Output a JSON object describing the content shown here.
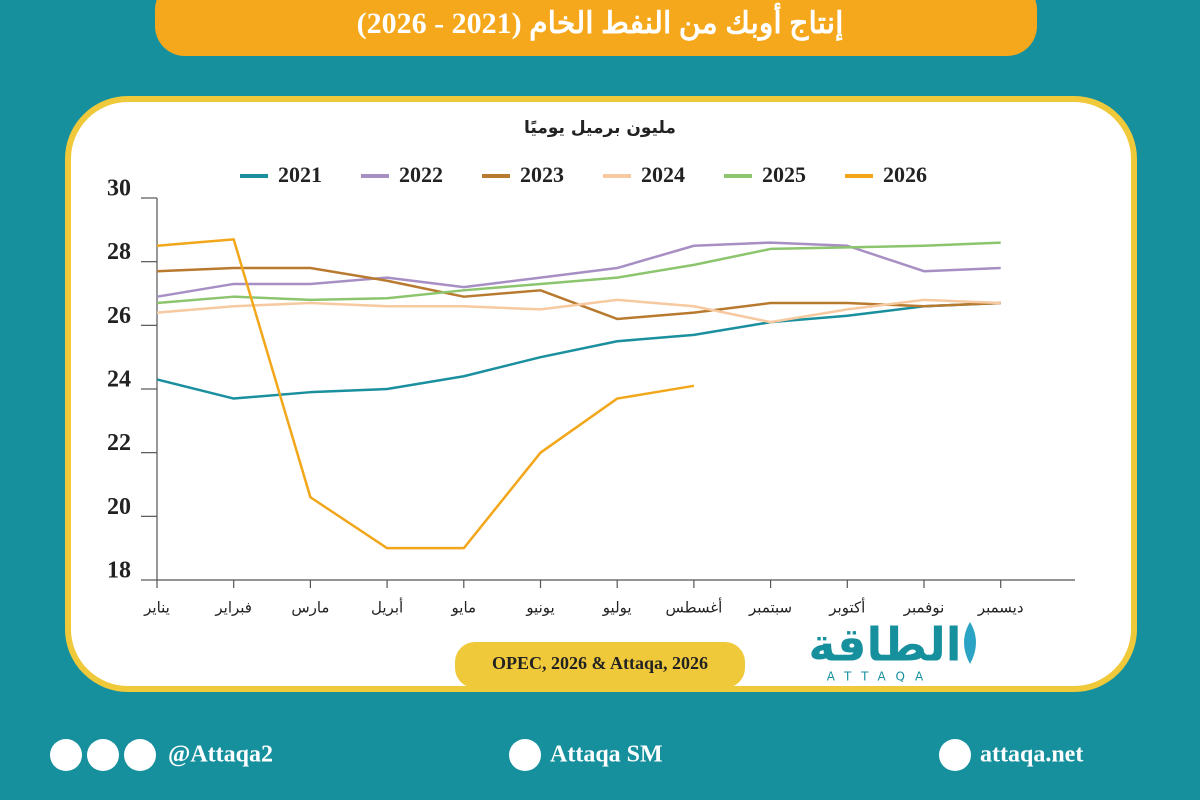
{
  "chart_data": {
    "type": "line",
    "title": "إنتاج أوبك من النفط الخام (2021 - 2026)",
    "y_label": "مليون برميل يوميًا",
    "source": "OPEC, 2026 & Attaqa, 2026",
    "categories": [
      "يناير",
      "فبراير",
      "مارس",
      "أبريل",
      "مايو",
      "يونيو",
      "يوليو",
      "أغسطس",
      "سبتمبر",
      "أكتوبر",
      "نوفمبر",
      "ديسمبر"
    ],
    "series": [
      {
        "name": "2021",
        "color": "#1a8f9e",
        "values": [
          24.3,
          23.7,
          23.9,
          24.0,
          24.4,
          25.0,
          25.5,
          25.7,
          26.1,
          26.3,
          26.6,
          26.7
        ]
      },
      {
        "name": "2022",
        "color": "#a78fc4",
        "values": [
          26.9,
          27.3,
          27.3,
          27.5,
          27.2,
          27.5,
          27.8,
          28.5,
          28.6,
          28.5,
          27.7,
          27.8
        ]
      },
      {
        "name": "2023",
        "color": "#b87a2f",
        "values": [
          27.7,
          27.8,
          27.8,
          27.4,
          26.9,
          27.1,
          26.2,
          26.4,
          26.7,
          26.7,
          26.6,
          26.7
        ]
      },
      {
        "name": "2024",
        "color": "#f6c9a0",
        "values": [
          26.4,
          26.6,
          26.7,
          26.6,
          26.6,
          26.5,
          26.8,
          26.6,
          26.1,
          26.5,
          26.8,
          26.7
        ]
      },
      {
        "name": "2025",
        "color": "#8cc56e",
        "values": [
          26.7,
          26.9,
          26.8,
          26.85,
          27.1,
          27.3,
          27.5,
          27.9,
          28.4,
          28.45,
          28.5,
          28.6
        ]
      },
      {
        "name": "2026",
        "color": "#f2a71b",
        "values": [
          28.5,
          28.7,
          20.6,
          19.0,
          19.0,
          22.0,
          23.7,
          24.1,
          null,
          null,
          null,
          null
        ]
      }
    ],
    "ylim": [
      18,
      30
    ],
    "yticks": [
      18,
      20,
      22,
      24,
      26,
      28,
      30
    ],
    "grid": false,
    "legend": "top"
  },
  "logo": {
    "name": "الطاقة",
    "latin": "ATTAQA"
  },
  "footer": {
    "social": "@Attaqa2",
    "youtube": "Attaqa SM",
    "website": "attaqa.net"
  }
}
